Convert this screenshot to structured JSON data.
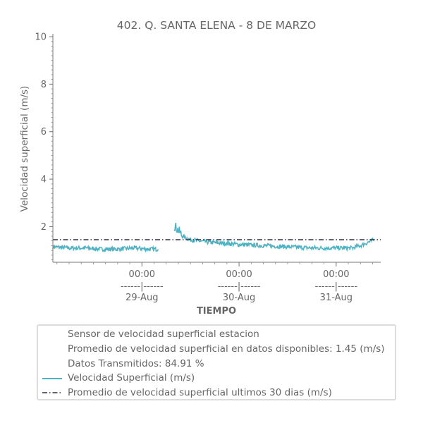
{
  "chart_data": {
    "type": "line",
    "title": "402. Q. SANTA ELENA - 8 DE MARZO",
    "xlabel": "TIEMPO",
    "ylabel": "Velocidad superficial (m/s)",
    "ylim": [
      0.5,
      10
    ],
    "yticks": [
      2,
      4,
      6,
      8,
      10
    ],
    "xlim": [
      "2023-08-28T02:00",
      "2023-08-31T11:00"
    ],
    "xticks": [
      {
        "x": "2023-08-29T00:00",
        "time": "00:00",
        "sep": "------|------",
        "date": "29-Aug"
      },
      {
        "x": "2023-08-30T00:00",
        "time": "00:00",
        "sep": "------|------",
        "date": "30-Aug"
      },
      {
        "x": "2023-08-31T00:00",
        "time": "00:00",
        "sep": "------|------",
        "date": "31-Aug"
      }
    ],
    "grid": false,
    "legend_position": "bottom",
    "series": [
      {
        "name": "Velocidad Superficial (m/s)",
        "color": "#4db3c4",
        "style": "solid",
        "x": [
          "2023-08-28T02:00",
          "2023-08-28T06:00",
          "2023-08-28T10:00",
          "2023-08-28T14:00",
          "2023-08-28T18:00",
          "2023-08-28T22:00",
          "2023-08-29T02:00",
          "2023-08-29T04:00",
          null,
          "2023-08-29T08:00",
          "2023-08-29T09:00",
          "2023-08-29T10:00",
          "2023-08-29T12:00",
          "2023-08-29T16:00",
          "2023-08-29T20:00",
          "2023-08-30T00:00",
          "2023-08-30T06:00",
          "2023-08-30T12:00",
          "2023-08-30T18:00",
          "2023-08-31T00:00",
          "2023-08-31T04:00",
          "2023-08-31T06:00",
          "2023-08-31T08:00",
          "2023-08-31T09:30"
        ],
        "y": [
          1.15,
          1.1,
          1.1,
          1.05,
          1.05,
          1.1,
          1.05,
          1.05,
          null,
          2.05,
          1.85,
          1.6,
          1.45,
          1.35,
          1.3,
          1.25,
          1.2,
          1.15,
          1.1,
          1.1,
          1.1,
          1.2,
          1.35,
          1.45
        ]
      },
      {
        "name": "Promedio de velocidad superficial ultimos 30 dias (m/s)",
        "color": "#2b2f45",
        "style": "dashdot",
        "x": [
          "2023-08-28T02:00",
          "2023-08-31T11:00"
        ],
        "y": [
          1.45,
          1.45
        ]
      }
    ],
    "legend": {
      "header_lines": [
        "Sensor de velocidad superficial estacion",
        "Promedio de velocidad superficial en datos disponibles: 1.45 (m/s)",
        "Datos Transmitidos: 84.91 %"
      ],
      "items": [
        {
          "label": "Velocidad Superficial (m/s)",
          "color": "#4db3c4",
          "style": "solid"
        },
        {
          "label": "Promedio de velocidad superficial ultimos 30 dias (m/s)",
          "color": "#2b2f45",
          "style": "dashdot"
        }
      ]
    }
  }
}
